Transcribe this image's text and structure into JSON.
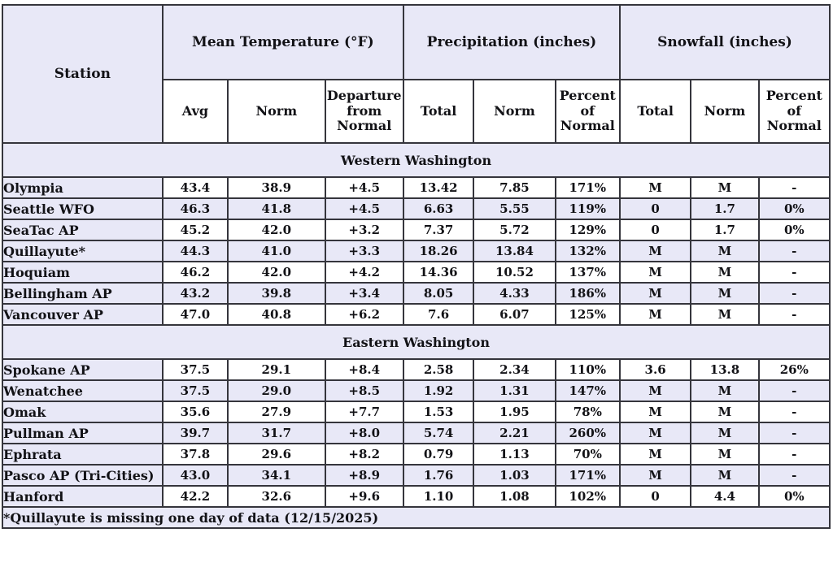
{
  "theme": {
    "lavender": "#e8e8f7",
    "white": "#ffffff",
    "border": "#35353c",
    "text": "#121216"
  },
  "table": {
    "station_header": "Station",
    "groups": [
      {
        "label": "Mean Temperature (°F)",
        "subcols": [
          "Avg",
          "Norm",
          "Departure\nfrom\nNormal"
        ]
      },
      {
        "label": "Precipitation (inches)",
        "subcols": [
          "Total",
          "Norm",
          "Percent\nof\nNormal"
        ]
      },
      {
        "label": "Snowfall (inches)",
        "subcols": [
          "Total",
          "Norm",
          "Percent\nof\nNormal"
        ]
      }
    ],
    "sections": [
      {
        "label": "Western Washington",
        "rows": [
          {
            "station": "Olympia",
            "values": [
              "43.4",
              "38.9",
              "+4.5",
              "13.42",
              "7.85",
              "171%",
              "M",
              "M",
              "-"
            ]
          },
          {
            "station": "Seattle WFO",
            "values": [
              "46.3",
              "41.8",
              "+4.5",
              "6.63",
              "5.55",
              "119%",
              "0",
              "1.7",
              "0%"
            ]
          },
          {
            "station": "SeaTac AP",
            "values": [
              "45.2",
              "42.0",
              "+3.2",
              "7.37",
              "5.72",
              "129%",
              "0",
              "1.7",
              "0%"
            ]
          },
          {
            "station": "Quillayute*",
            "values": [
              "44.3",
              "41.0",
              "+3.3",
              "18.26",
              "13.84",
              "132%",
              "M",
              "M",
              "-"
            ]
          },
          {
            "station": "Hoquiam",
            "values": [
              "46.2",
              "42.0",
              "+4.2",
              "14.36",
              "10.52",
              "137%",
              "M",
              "M",
              "-"
            ]
          },
          {
            "station": "Bellingham AP",
            "values": [
              "43.2",
              "39.8",
              "+3.4",
              "8.05",
              "4.33",
              "186%",
              "M",
              "M",
              "-"
            ]
          },
          {
            "station": "Vancouver AP",
            "values": [
              "47.0",
              "40.8",
              "+6.2",
              "7.6",
              "6.07",
              "125%",
              "M",
              "M",
              "-"
            ]
          }
        ]
      },
      {
        "label": "Eastern Washington",
        "rows": [
          {
            "station": "Spokane AP",
            "values": [
              "37.5",
              "29.1",
              "+8.4",
              "2.58",
              "2.34",
              "110%",
              "3.6",
              "13.8",
              "26%"
            ]
          },
          {
            "station": "Wenatchee",
            "values": [
              "37.5",
              "29.0",
              "+8.5",
              "1.92",
              "1.31",
              "147%",
              "M",
              "M",
              "-"
            ]
          },
          {
            "station": "Omak",
            "values": [
              "35.6",
              "27.9",
              "+7.7",
              "1.53",
              "1.95",
              "78%",
              "M",
              "M",
              "-"
            ]
          },
          {
            "station": "Pullman AP",
            "values": [
              "39.7",
              "31.7",
              "+8.0",
              "5.74",
              "2.21",
              "260%",
              "M",
              "M",
              "-"
            ]
          },
          {
            "station": "Ephrata",
            "values": [
              "37.8",
              "29.6",
              "+8.2",
              "0.79",
              "1.13",
              "70%",
              "M",
              "M",
              "-"
            ]
          },
          {
            "station": "Pasco AP (Tri-Cities)",
            "values": [
              "43.0",
              "34.1",
              "+8.9",
              "1.76",
              "1.03",
              "171%",
              "M",
              "M",
              "-"
            ]
          },
          {
            "station": "Hanford",
            "values": [
              "42.2",
              "32.6",
              "+9.6",
              "1.10",
              "1.08",
              "102%",
              "0",
              "4.4",
              "0%"
            ]
          }
        ]
      }
    ],
    "footnote": "*Quillayute is missing one day of data (12/15/2025)"
  }
}
